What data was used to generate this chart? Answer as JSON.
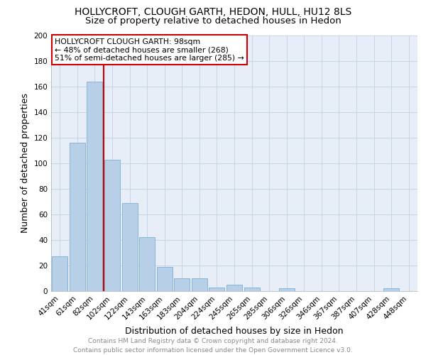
{
  "title": "HOLLYCROFT, CLOUGH GARTH, HEDON, HULL, HU12 8LS",
  "subtitle": "Size of property relative to detached houses in Hedon",
  "xlabel": "Distribution of detached houses by size in Hedon",
  "ylabel": "Number of detached properties",
  "bar_labels": [
    "41sqm",
    "61sqm",
    "82sqm",
    "102sqm",
    "122sqm",
    "143sqm",
    "163sqm",
    "183sqm",
    "204sqm",
    "224sqm",
    "245sqm",
    "265sqm",
    "285sqm",
    "306sqm",
    "326sqm",
    "346sqm",
    "367sqm",
    "387sqm",
    "407sqm",
    "428sqm",
    "448sqm"
  ],
  "bar_values": [
    27,
    116,
    164,
    103,
    69,
    42,
    19,
    10,
    10,
    3,
    5,
    3,
    0,
    2,
    0,
    0,
    0,
    0,
    0,
    2,
    0
  ],
  "bar_color": "#b8cfe8",
  "bar_edge_color": "#7aafd4",
  "vline_color": "#cc0000",
  "annotation_text": "HOLLYCROFT CLOUGH GARTH: 98sqm\n← 48% of detached houses are smaller (268)\n51% of semi-detached houses are larger (285) →",
  "annotation_box_color": "#ffffff",
  "annotation_box_edge": "#cc0000",
  "ylim": [
    0,
    200
  ],
  "yticks": [
    0,
    20,
    40,
    60,
    80,
    100,
    120,
    140,
    160,
    180,
    200
  ],
  "grid_color": "#c8d4e8",
  "bg_color": "#e8eef8",
  "footer_text": "Contains HM Land Registry data © Crown copyright and database right 2024.\nContains public sector information licensed under the Open Government Licence v3.0.",
  "title_fontsize": 10,
  "subtitle_fontsize": 9.5,
  "xlabel_fontsize": 9,
  "ylabel_fontsize": 9,
  "tick_fontsize": 7.5,
  "footer_fontsize": 6.5,
  "annot_fontsize": 7.8
}
